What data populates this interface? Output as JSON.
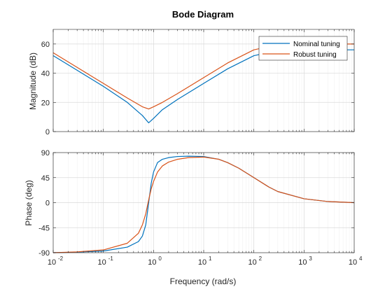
{
  "chart_data": [
    {
      "type": "line",
      "panel": "magnitude",
      "title": "Bode Diagram",
      "ylabel": "Magnitude (dB)",
      "xscale": "log",
      "xlim": [
        0.01,
        10000
      ],
      "ylim": [
        0,
        70
      ],
      "yticks": [
        0,
        20,
        40,
        60
      ],
      "ytick_labels": [
        "0",
        "20",
        "40",
        "60"
      ],
      "grid": true,
      "legend": "top-right",
      "series": [
        {
          "name": "Nominal tuning",
          "color": "#0072BD",
          "x": [
            0.01,
            0.03,
            0.1,
            0.3,
            0.6,
            0.8,
            1.0,
            1.5,
            3,
            10,
            30,
            100,
            300,
            1000,
            10000
          ],
          "y": [
            52,
            42,
            31,
            20,
            11,
            6,
            9,
            15,
            22,
            33,
            43,
            52,
            55.5,
            56,
            56
          ]
        },
        {
          "name": "Robust tuning",
          "color": "#D95319",
          "x": [
            0.01,
            0.03,
            0.1,
            0.3,
            0.6,
            0.8,
            1.0,
            1.5,
            3,
            10,
            30,
            100,
            300,
            1000,
            10000
          ],
          "y": [
            54,
            44,
            33,
            23,
            17,
            15.5,
            17,
            20,
            26,
            37,
            47,
            56,
            59.5,
            60,
            60
          ]
        }
      ]
    },
    {
      "type": "line",
      "panel": "phase",
      "ylabel": "Phase (deg)",
      "xlabel": "Frequency (rad/s)",
      "xscale": "log",
      "xlim": [
        0.01,
        10000
      ],
      "ylim": [
        -90,
        90
      ],
      "yticks": [
        -90,
        -45,
        0,
        45,
        90
      ],
      "ytick_labels": [
        "-90",
        "-45",
        "0",
        "45",
        "90"
      ],
      "xtick_exponents": [
        "-2",
        "-1",
        "0",
        "1",
        "2",
        "3",
        "4"
      ],
      "xtick_base": "10",
      "grid": true,
      "series": [
        {
          "name": "Nominal tuning",
          "color": "#0072BD",
          "x": [
            0.01,
            0.03,
            0.1,
            0.3,
            0.5,
            0.6,
            0.7,
            0.8,
            0.9,
            1.0,
            1.2,
            1.5,
            2,
            3,
            5,
            10,
            20,
            30,
            50,
            100,
            200,
            300,
            1000,
            3000,
            10000
          ],
          "y": [
            -90,
            -89,
            -87,
            -80,
            -70,
            -60,
            -40,
            0,
            35,
            55,
            72,
            78,
            81,
            83,
            83.5,
            83,
            78,
            72,
            62,
            45,
            28,
            20,
            7,
            2,
            0
          ]
        },
        {
          "name": "Robust tuning",
          "color": "#D95319",
          "x": [
            0.01,
            0.03,
            0.1,
            0.3,
            0.5,
            0.6,
            0.7,
            0.8,
            0.9,
            1.0,
            1.2,
            1.5,
            2,
            3,
            5,
            10,
            20,
            30,
            50,
            100,
            200,
            300,
            1000,
            3000,
            10000
          ],
          "y": [
            -90,
            -88.5,
            -85,
            -73,
            -55,
            -40,
            -20,
            5,
            25,
            38,
            55,
            66,
            73,
            78,
            81,
            82,
            78,
            72,
            62,
            45,
            28,
            20,
            7,
            2,
            0
          ]
        }
      ]
    }
  ]
}
